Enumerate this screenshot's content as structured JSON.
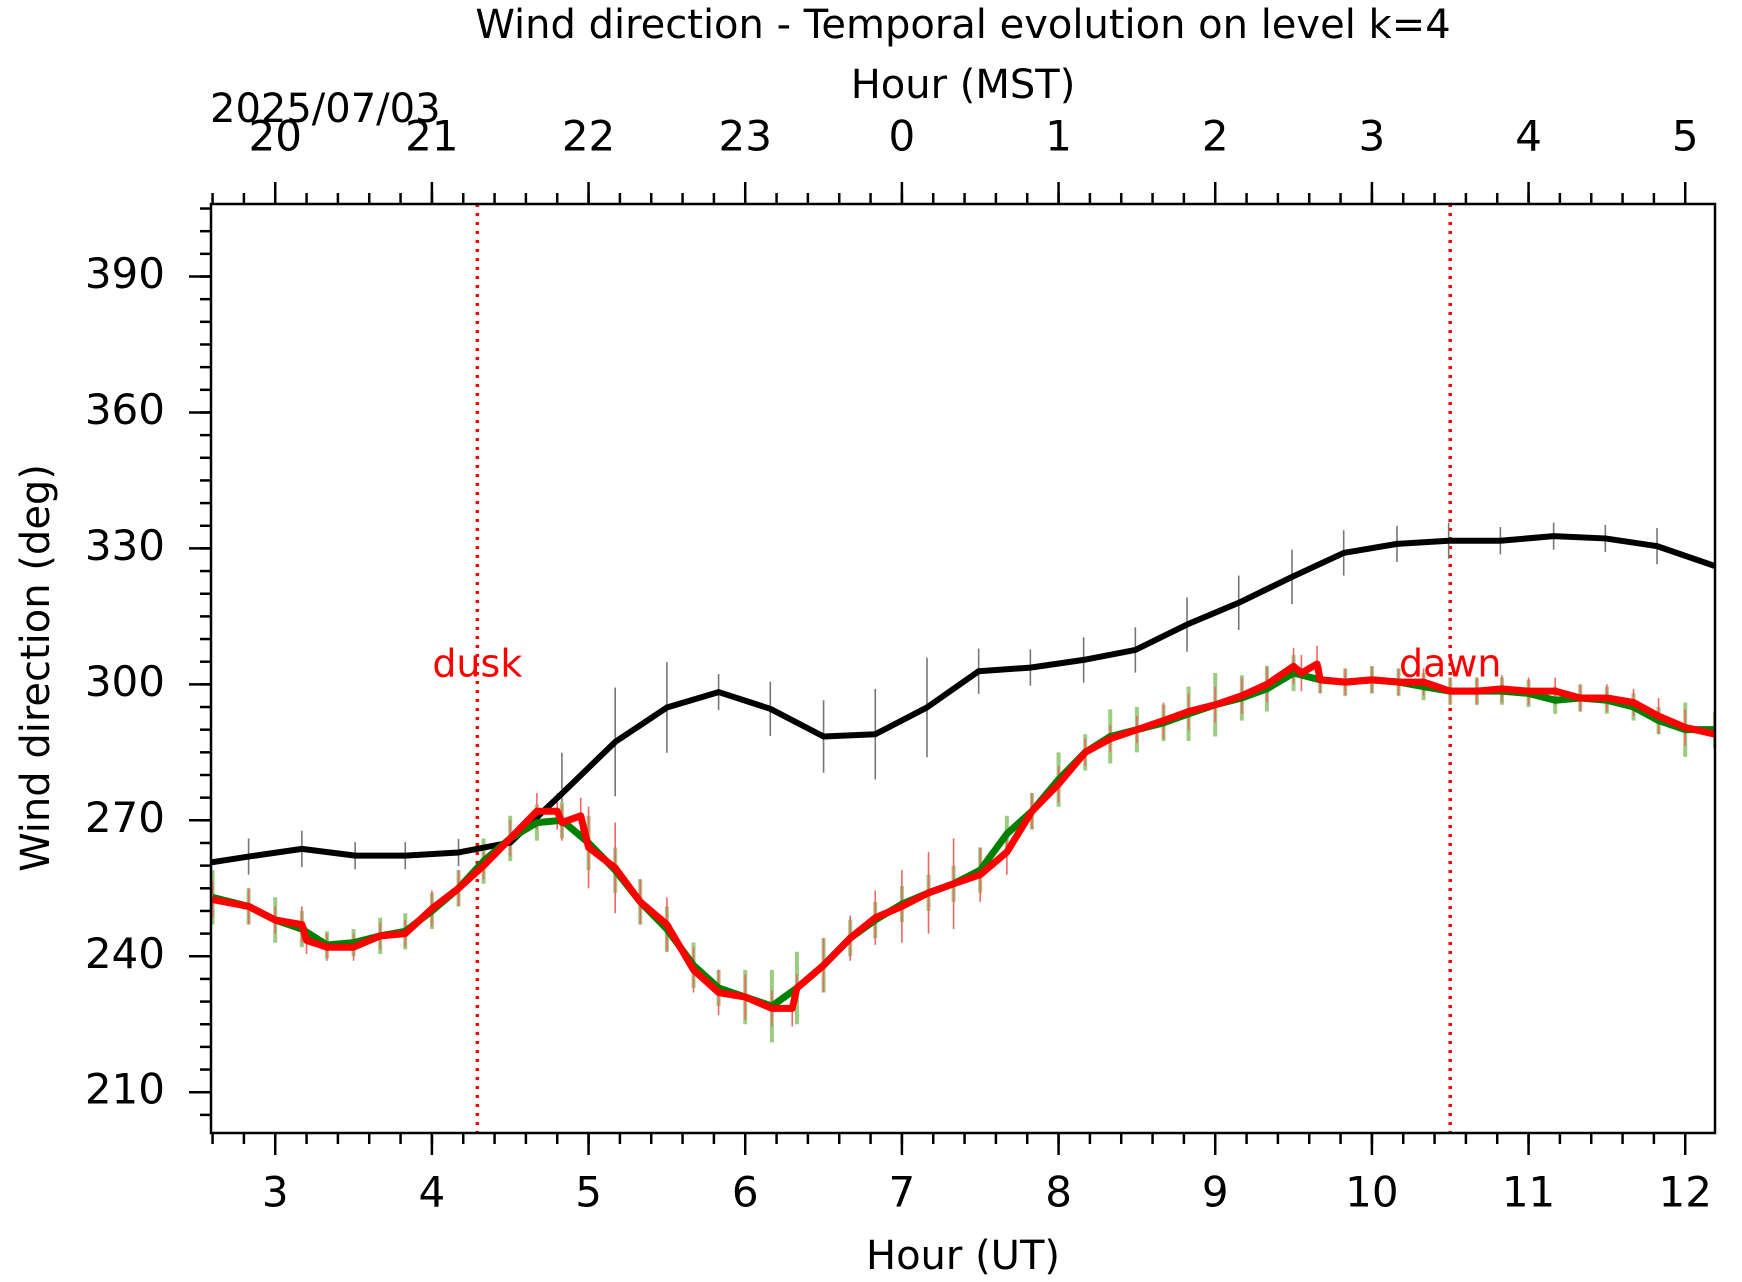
{
  "chart_data": {
    "type": "line",
    "title": "Wind direction - Temporal evolution on level k=4",
    "xlabel": "Hour (UT)",
    "x2label": "Hour (MST)",
    "ylabel": "Wind direction (deg)",
    "date_label": "2025/07/03",
    "xlim": [
      2.59,
      12.19
    ],
    "xticks": [
      3,
      4,
      5,
      6,
      7,
      8,
      9,
      10,
      11,
      12
    ],
    "x2lim": [
      19.59,
      29.19
    ],
    "x2ticks": [
      20,
      21,
      22,
      23,
      {
        "value": 24,
        "label": "0"
      },
      {
        "value": 25,
        "label": "1"
      },
      {
        "value": 26,
        "label": "2"
      },
      {
        "value": 27,
        "label": "3"
      },
      {
        "value": 28,
        "label": "4"
      },
      {
        "value": 29,
        "label": "5"
      }
    ],
    "ylim": [
      201,
      406
    ],
    "yticks": [
      210,
      240,
      270,
      300,
      330,
      360,
      390
    ],
    "xminor_step": 0.2,
    "yminor_step": 5,
    "grid": false,
    "vlines": [
      {
        "x": 4.29,
        "color": "#ff0000",
        "label": "dusk",
        "label_y": 304
      },
      {
        "x": 10.5,
        "color": "#ff0000",
        "label": "dawn",
        "label_y": 304
      }
    ],
    "series": [
      {
        "color": "#000000",
        "error_color": "#777777",
        "x": [
          2.59,
          2.83,
          3.17,
          3.51,
          3.83,
          4.17,
          4.5,
          4.83,
          5.17,
          5.5,
          5.83,
          6.16,
          6.5,
          6.83,
          7.16,
          7.49,
          7.82,
          8.16,
          8.49,
          8.82,
          9.15,
          9.49,
          9.82,
          10.16,
          10.49,
          10.82,
          11.16,
          11.49,
          11.82,
          12.19
        ],
        "values": [
          260.7,
          262,
          263.7,
          262.2,
          262.2,
          262.9,
          265.1,
          275.9,
          287.3,
          294.9,
          298.3,
          294.6,
          288.5,
          289,
          294.9,
          302.9,
          303.7,
          305.4,
          307.6,
          313.2,
          318,
          323.7,
          329,
          331,
          331.7,
          331.7,
          332.7,
          332.2,
          330.5,
          326.1
        ],
        "errors": [
          2,
          4,
          4,
          3,
          3,
          3,
          3,
          9,
          12,
          10,
          4,
          6,
          8,
          10,
          11,
          5,
          4,
          5,
          5,
          6,
          6,
          6,
          5,
          4,
          4,
          3,
          3,
          3,
          4,
          7
        ]
      },
      {
        "color": "#008000",
        "error_color": "#9acd80",
        "x": [
          2.6,
          2.83,
          3.0,
          3.17,
          3.33,
          3.5,
          3.67,
          3.83,
          4.0,
          4.17,
          4.33,
          4.5,
          4.67,
          4.83,
          5.0,
          5.17,
          5.33,
          5.5,
          5.67,
          5.83,
          6.0,
          6.17,
          6.33,
          6.5,
          6.67,
          6.83,
          7.0,
          7.17,
          7.33,
          7.5,
          7.67,
          7.83,
          8.0,
          8.17,
          8.33,
          8.5,
          8.67,
          8.83,
          9.0,
          9.17,
          9.33,
          9.5,
          9.67,
          9.83,
          10.0,
          10.17,
          10.33,
          10.5,
          10.67,
          10.83,
          11.0,
          11.17,
          11.33,
          11.5,
          11.67,
          11.83,
          12.0,
          12.19
        ],
        "values": [
          253,
          251,
          248,
          246,
          242.5,
          243,
          244.5,
          245.5,
          250,
          255,
          261,
          266,
          269.5,
          270,
          265,
          259,
          252,
          246,
          238,
          233,
          231,
          229,
          233,
          238,
          244,
          248,
          251.5,
          254,
          256,
          259,
          267,
          272,
          279,
          285,
          288.5,
          290,
          291.5,
          293.5,
          295.5,
          297,
          299,
          302.5,
          301,
          300.5,
          301,
          300.5,
          299.5,
          298.5,
          298.5,
          298.5,
          298,
          296.5,
          297,
          296.5,
          295,
          292,
          290,
          290
        ],
        "errors": [
          6,
          4,
          5,
          4,
          3,
          3,
          4,
          4,
          4,
          4,
          5,
          5,
          4,
          4,
          6,
          5,
          5,
          5,
          5,
          4,
          6,
          8,
          8,
          6,
          4,
          4,
          4,
          4,
          4,
          5,
          4,
          4,
          6,
          4,
          6,
          5,
          4,
          6,
          7,
          5,
          5,
          4,
          3,
          3,
          3,
          3,
          3,
          3,
          3,
          3,
          3,
          3,
          3,
          3,
          3,
          3,
          6,
          4
        ]
      },
      {
        "color": "#ff0000",
        "error_color": "#ee6666",
        "x": [
          2.6,
          2.83,
          3.0,
          3.17,
          3.2,
          3.33,
          3.5,
          3.67,
          3.83,
          4.0,
          4.17,
          4.33,
          4.5,
          4.67,
          4.8,
          4.83,
          4.95,
          5.0,
          5.17,
          5.33,
          5.5,
          5.67,
          5.83,
          6.0,
          6.17,
          6.3,
          6.33,
          6.5,
          6.67,
          6.83,
          7.0,
          7.17,
          7.33,
          7.5,
          7.67,
          7.83,
          8.0,
          8.17,
          8.33,
          8.5,
          8.67,
          8.83,
          9.0,
          9.17,
          9.33,
          9.5,
          9.55,
          9.65,
          9.67,
          9.83,
          10.0,
          10.17,
          10.33,
          10.5,
          10.67,
          10.83,
          11.0,
          11.17,
          11.33,
          11.5,
          11.67,
          11.83,
          12.0,
          12.19
        ],
        "values": [
          252.5,
          251,
          248,
          247,
          243.5,
          242,
          242,
          244.5,
          245,
          250.5,
          255,
          260,
          266,
          272,
          272,
          269.5,
          271,
          264,
          259.5,
          252,
          247,
          237,
          232,
          231,
          228.5,
          228.5,
          233,
          238,
          244,
          248.5,
          251,
          254,
          256,
          258,
          263,
          272,
          278,
          285,
          288,
          290,
          292,
          294,
          295.5,
          297.5,
          300,
          304,
          302.5,
          304.5,
          301,
          300.5,
          301,
          300.5,
          300.5,
          298.5,
          298.5,
          299,
          298.5,
          298.5,
          297,
          297,
          296,
          293,
          290.5,
          289
        ],
        "errors": [
          4,
          4,
          3,
          4,
          3,
          3,
          3,
          3,
          3,
          4,
          4,
          3,
          4,
          4,
          4,
          4,
          4,
          9,
          10,
          5,
          6,
          5,
          5,
          5,
          4,
          4,
          3,
          6,
          5,
          6,
          8,
          9,
          10,
          6,
          5,
          4,
          4,
          3,
          3,
          3,
          4,
          4,
          4,
          4,
          4,
          4,
          4,
          4,
          3,
          3,
          3,
          3,
          3,
          3,
          3,
          3,
          3,
          3,
          3,
          3,
          3,
          4,
          4,
          5
        ]
      }
    ]
  }
}
